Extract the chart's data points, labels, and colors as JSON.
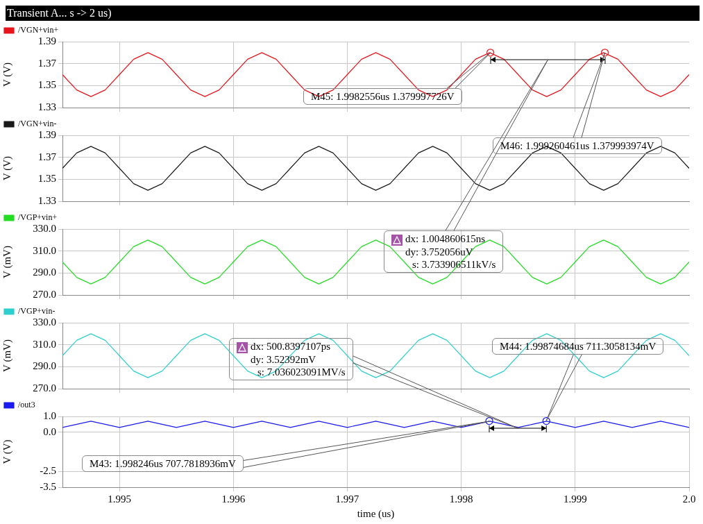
{
  "chart_data": [
    {
      "type": "line",
      "title": "Transient A... s -> 2 us)",
      "ylabel": "V (V)",
      "legend": "top left",
      "grid": true,
      "tick_labels": "y",
      "marker": "none",
      "line_style": "solid",
      "x": [
        1.9945,
        1.994625,
        1.99475,
        1.994875,
        1.995,
        1.995125,
        1.99525,
        1.995375,
        1.9955,
        1.995625,
        1.99575,
        1.995875,
        1.996,
        1.996125,
        1.99625,
        1.996375,
        1.9965,
        1.996625,
        1.99675,
        1.996875,
        1.997,
        1.997125,
        1.99725,
        1.997375,
        1.9975,
        1.997625,
        1.99775,
        1.997875,
        1.998,
        1.998125,
        1.99825,
        1.998375,
        1.9985,
        1.998625,
        1.99875,
        1.998875,
        1.999,
        1.999125,
        1.99925,
        1.999375,
        1.9995,
        1.999625,
        1.99975,
        1.999875,
        2.0
      ],
      "xlim": [
        1.9945,
        2.0
      ],
      "xticks": [
        1.995,
        1.996,
        1.997,
        1.998,
        1.999
      ],
      "ylim": [
        1.33,
        1.39
      ],
      "yticks": [
        1.33,
        1.35,
        1.37,
        1.39
      ],
      "series": [
        {
          "name": "/VGN+vin+",
          "color": "#e8141b",
          "values": [
            1.36,
            1.346,
            1.34,
            1.346,
            1.36,
            1.374,
            1.38,
            1.374,
            1.36,
            1.346,
            1.34,
            1.346,
            1.36,
            1.374,
            1.38,
            1.374,
            1.36,
            1.346,
            1.34,
            1.346,
            1.36,
            1.374,
            1.38,
            1.374,
            1.36,
            1.346,
            1.34,
            1.346,
            1.36,
            1.374,
            1.38,
            1.374,
            1.36,
            1.346,
            1.34,
            1.346,
            1.36,
            1.374,
            1.38,
            1.374,
            1.36,
            1.346,
            1.34,
            1.346,
            1.36
          ]
        },
        {
          "type": "scatter",
          "color": "#e8141b",
          "marker": "circle",
          "x": [
            1.9982556,
            1.999260461
          ],
          "values": [
            1.38,
            1.38
          ]
        }
      ],
      "annotations": [
        "M45: 1.9982556us 1.379997726V",
        "M46: 1.999260461us 1.379993974V",
        "dx: 1.004860615ns\ndy: 3.752056uV\ns: 3.733906511kV/s"
      ]
    },
    {
      "type": "line",
      "ylabel": "V (V)",
      "legend": "top left",
      "grid": true,
      "tick_labels": "y",
      "marker": "none",
      "line_style": "solid",
      "x": [
        1.9945,
        1.994625,
        1.99475,
        1.994875,
        1.995,
        1.995125,
        1.99525,
        1.995375,
        1.9955,
        1.995625,
        1.99575,
        1.995875,
        1.996,
        1.996125,
        1.99625,
        1.996375,
        1.9965,
        1.996625,
        1.99675,
        1.996875,
        1.997,
        1.997125,
        1.99725,
        1.997375,
        1.9975,
        1.997625,
        1.99775,
        1.997875,
        1.998,
        1.998125,
        1.99825,
        1.998375,
        1.9985,
        1.998625,
        1.99875,
        1.998875,
        1.999,
        1.999125,
        1.99925,
        1.999375,
        1.9995,
        1.999625,
        1.99975,
        1.999875,
        2.0
      ],
      "xlim": [
        1.9945,
        2.0
      ],
      "xticks": [
        1.995,
        1.996,
        1.997,
        1.998,
        1.999
      ],
      "ylim": [
        1.33,
        1.39
      ],
      "yticks": [
        1.33,
        1.35,
        1.37,
        1.39
      ],
      "series": [
        {
          "name": "/VGN+vin-",
          "color": "#1a1a1a",
          "values": [
            1.36,
            1.374,
            1.38,
            1.374,
            1.36,
            1.346,
            1.34,
            1.346,
            1.36,
            1.374,
            1.38,
            1.374,
            1.36,
            1.346,
            1.34,
            1.346,
            1.36,
            1.374,
            1.38,
            1.374,
            1.36,
            1.346,
            1.34,
            1.346,
            1.36,
            1.374,
            1.38,
            1.374,
            1.36,
            1.346,
            1.34,
            1.346,
            1.36,
            1.374,
            1.38,
            1.374,
            1.36,
            1.346,
            1.34,
            1.346,
            1.36,
            1.374,
            1.38,
            1.374,
            1.36
          ]
        }
      ]
    },
    {
      "type": "line",
      "ylabel": "V (mV)",
      "legend": "top left",
      "grid": true,
      "tick_labels": "y",
      "marker": "none",
      "line_style": "solid",
      "x": [
        1.9945,
        1.994625,
        1.99475,
        1.994875,
        1.995,
        1.995125,
        1.99525,
        1.995375,
        1.9955,
        1.995625,
        1.99575,
        1.995875,
        1.996,
        1.996125,
        1.99625,
        1.996375,
        1.9965,
        1.996625,
        1.99675,
        1.996875,
        1.997,
        1.997125,
        1.99725,
        1.997375,
        1.9975,
        1.997625,
        1.99775,
        1.997875,
        1.998,
        1.998125,
        1.99825,
        1.998375,
        1.9985,
        1.998625,
        1.99875,
        1.998875,
        1.999,
        1.999125,
        1.99925,
        1.999375,
        1.9995,
        1.999625,
        1.99975,
        1.999875,
        2.0
      ],
      "xlim": [
        1.9945,
        2.0
      ],
      "xticks": [
        1.995,
        1.996,
        1.997,
        1.998,
        1.999
      ],
      "ylim": [
        270,
        330
      ],
      "yticks": [
        {
          "value": 270,
          "label": "270.0"
        },
        {
          "value": 290,
          "label": "290.0"
        },
        {
          "value": 310,
          "label": "310.0"
        },
        {
          "value": 330,
          "label": "330.0"
        }
      ],
      "series": [
        {
          "name": "/VGP+vin+",
          "color": "#22dd22",
          "values": [
            300,
            286,
            280,
            286,
            300,
            314,
            320,
            314,
            300,
            286,
            280,
            286,
            300,
            314,
            320,
            314,
            300,
            286,
            280,
            286,
            300,
            314,
            320,
            314,
            300,
            286,
            280,
            286,
            300,
            314,
            320,
            314,
            300,
            286,
            280,
            286,
            300,
            314,
            320,
            314,
            300,
            286,
            280,
            286,
            300
          ]
        }
      ]
    },
    {
      "type": "line",
      "ylabel": "V (mV)",
      "legend": "top left",
      "grid": true,
      "tick_labels": "y",
      "marker": "none",
      "line_style": "solid",
      "x": [
        1.9945,
        1.994625,
        1.99475,
        1.994875,
        1.995,
        1.995125,
        1.99525,
        1.995375,
        1.9955,
        1.995625,
        1.99575,
        1.995875,
        1.996,
        1.996125,
        1.99625,
        1.996375,
        1.9965,
        1.996625,
        1.99675,
        1.996875,
        1.997,
        1.997125,
        1.99725,
        1.997375,
        1.9975,
        1.997625,
        1.99775,
        1.997875,
        1.998,
        1.998125,
        1.99825,
        1.998375,
        1.9985,
        1.998625,
        1.99875,
        1.998875,
        1.999,
        1.999125,
        1.99925,
        1.999375,
        1.9995,
        1.999625,
        1.99975,
        1.999875,
        2.0
      ],
      "xlim": [
        1.9945,
        2.0
      ],
      "xticks": [
        1.995,
        1.996,
        1.997,
        1.998,
        1.999
      ],
      "ylim": [
        270,
        330
      ],
      "yticks": [
        {
          "value": 270,
          "label": "270.0"
        },
        {
          "value": 290,
          "label": "290.0"
        },
        {
          "value": 310,
          "label": "310.0"
        },
        {
          "value": 330,
          "label": "330.0"
        }
      ],
      "series": [
        {
          "name": "/VGP+vin-",
          "color": "#2ecfcf",
          "values": [
            300,
            314,
            320,
            314,
            300,
            286,
            280,
            286,
            300,
            314,
            320,
            314,
            300,
            286,
            280,
            286,
            300,
            314,
            320,
            314,
            300,
            286,
            280,
            286,
            300,
            314,
            320,
            314,
            300,
            286,
            280,
            286,
            300,
            314,
            320,
            314,
            300,
            286,
            280,
            286,
            300,
            314,
            320,
            314,
            300
          ]
        }
      ]
    },
    {
      "type": "line",
      "ylabel": "V (V)",
      "xlabel": "time (us)",
      "legend": "top left",
      "grid": true,
      "marker": "none",
      "line_style": "solid",
      "x": [
        1.9945,
        1.994625,
        1.99475,
        1.994875,
        1.995,
        1.995125,
        1.99525,
        1.995375,
        1.9955,
        1.995625,
        1.99575,
        1.995875,
        1.996,
        1.996125,
        1.99625,
        1.996375,
        1.9965,
        1.996625,
        1.99675,
        1.996875,
        1.997,
        1.997125,
        1.99725,
        1.997375,
        1.9975,
        1.997625,
        1.99775,
        1.997875,
        1.998,
        1.998125,
        1.99825,
        1.998375,
        1.9985,
        1.998625,
        1.99875,
        1.998875,
        1.999,
        1.999125,
        1.99925,
        1.999375,
        1.9995,
        1.999625,
        1.99975,
        1.999875,
        2.0
      ],
      "xlim": [
        1.9945,
        2.0
      ],
      "xticks": [
        1.995,
        1.996,
        1.997,
        1.998,
        1.999,
        {
          "value": 2.0,
          "label": "2.0"
        }
      ],
      "ylim": [
        -3.5,
        1.0
      ],
      "yticks": [
        -3.5,
        -2.5,
        {
          "value": 0,
          "label": "0.0"
        },
        {
          "value": 1.0,
          "label": "1.0"
        }
      ],
      "series": [
        {
          "name": "/out3",
          "color": "#1a1aee",
          "values": [
            0.3,
            0.5,
            0.7,
            0.5,
            0.3,
            0.5,
            0.7,
            0.5,
            0.3,
            0.5,
            0.7,
            0.5,
            0.3,
            0.5,
            0.7,
            0.5,
            0.3,
            0.5,
            0.7,
            0.5,
            0.3,
            0.5,
            0.7,
            0.5,
            0.3,
            0.5,
            0.7,
            0.5,
            0.3,
            0.5,
            0.7,
            0.5,
            0.3,
            0.5,
            0.7,
            0.5,
            0.3,
            0.5,
            0.7,
            0.5,
            0.3,
            0.5,
            0.7,
            0.5,
            0.3
          ]
        },
        {
          "type": "scatter",
          "color": "#1a1aee",
          "marker": "circle",
          "x": [
            1.998246,
            1.99874684
          ],
          "values": [
            0.71,
            0.71
          ]
        }
      ],
      "annotations": [
        "M43: 1.998246us 707.7818936mV",
        "M44: 1.99874684us 711.3058134mV",
        "dx: 500.8397107ps\ndy: 3.52392mV\ns: 7.036023091MV/s"
      ]
    }
  ]
}
